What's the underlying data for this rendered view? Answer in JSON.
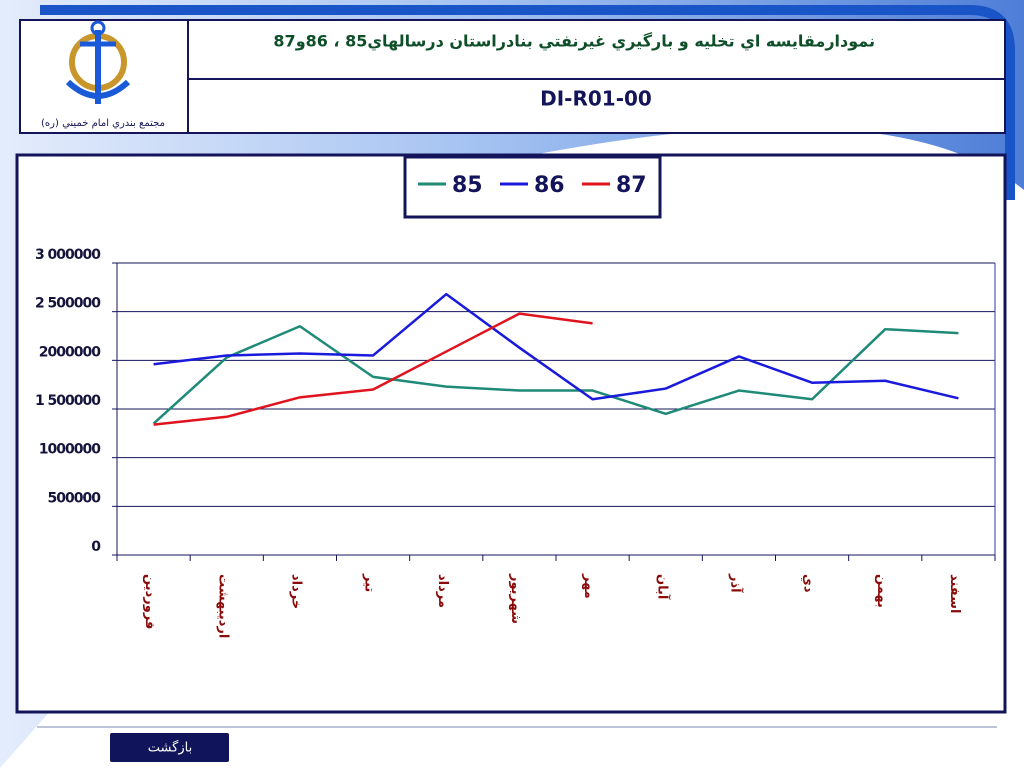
{
  "header": {
    "title": "نمودارمقايسه اي تخليه و بارگيري غيرنفتي بنادراستان درسالهاي85 ، 86و87",
    "code": "DI-R01-00",
    "logo_caption": "مجتمع بندري امام خميني (ره)"
  },
  "chart_data": {
    "type": "line",
    "categories": [
      "فروردين",
      "ارديبهشت",
      "خرداد",
      "تير",
      "مرداد",
      "شهريور",
      "مهر",
      "آبان",
      "آذر",
      "دي",
      "بهمن",
      "اسفند"
    ],
    "series": [
      {
        "name": "85",
        "color": "#1f8a78",
        "values": [
          1350000,
          2030000,
          2350000,
          1830000,
          1730000,
          1690000,
          1690000,
          1450000,
          1690000,
          1600000,
          2320000,
          2280000
        ]
      },
      {
        "name": "86",
        "color": "#1a1adc",
        "values": [
          1960000,
          2050000,
          2070000,
          2050000,
          2680000,
          2130000,
          1600000,
          1710000,
          2040000,
          1770000,
          1790000,
          1610000
        ]
      },
      {
        "name": "87",
        "color": "#e0141e",
        "values": [
          1340000,
          1420000,
          1620000,
          1700000,
          2090000,
          2480000,
          2380000,
          null,
          null,
          null,
          null,
          null
        ]
      }
    ],
    "ylim": [
      0,
      3000000
    ],
    "yticks": [
      0,
      500000,
      1000000,
      {
        "value": 1500000,
        "label": "1 500000"
      },
      2000000,
      {
        "value": 2500000,
        "label": "2 500000"
      },
      {
        "value": 3000000,
        "label": "3 000000"
      }
    ],
    "grid": true,
    "legend": "top"
  },
  "footer": {
    "back_button": "بازگشت"
  }
}
